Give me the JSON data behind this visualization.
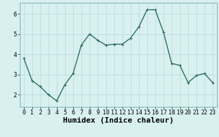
{
  "x": [
    0,
    1,
    2,
    3,
    4,
    5,
    6,
    7,
    8,
    9,
    10,
    11,
    12,
    13,
    14,
    15,
    16,
    17,
    18,
    19,
    20,
    21,
    22,
    23
  ],
  "y": [
    3.8,
    2.7,
    2.4,
    2.0,
    1.7,
    2.5,
    3.05,
    4.45,
    5.0,
    4.7,
    4.45,
    4.5,
    4.5,
    4.8,
    5.35,
    6.2,
    6.2,
    5.1,
    3.55,
    3.45,
    2.6,
    2.95,
    3.05,
    2.6
  ],
  "line_color": "#2d6b5e",
  "marker": "+",
  "marker_size": 3.5,
  "line_width": 1.0,
  "bg_color": "#d8f0f0",
  "grid_color": "#c0dede",
  "xlabel": "Humidex (Indice chaleur)",
  "xlabel_fontsize": 8,
  "ylim": [
    1.4,
    6.55
  ],
  "yticks": [
    2,
    3,
    4,
    5,
    6
  ],
  "xticks": [
    0,
    1,
    2,
    3,
    4,
    5,
    6,
    7,
    8,
    9,
    10,
    11,
    12,
    13,
    14,
    15,
    16,
    17,
    18,
    19,
    20,
    21,
    22,
    23
  ],
  "tick_fontsize": 6,
  "xlim": [
    -0.5,
    23.5
  ]
}
